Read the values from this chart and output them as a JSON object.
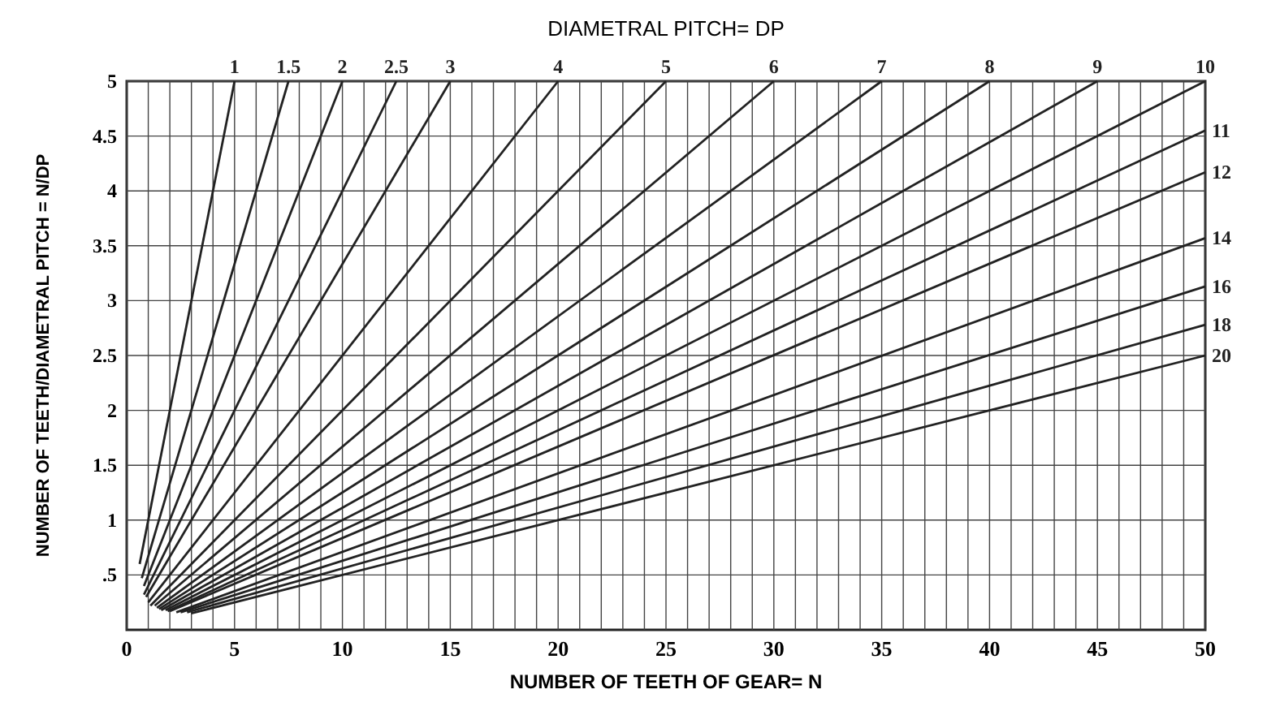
{
  "chart_data": {
    "type": "line",
    "title": "DIAMETRAL PITCH= DP",
    "xlabel": "NUMBER OF TEETH OF GEAR= N",
    "ylabel": "NUMBER OF TEETH/DIAMETRAL PITCH = N/DP",
    "xlim": [
      0,
      50
    ],
    "ylim": [
      0,
      5
    ],
    "xticks": [
      0,
      {
        "value": 1,
        "label": null
      },
      {
        "value": 2,
        "label": null
      },
      {
        "value": 3,
        "label": null
      },
      {
        "value": 4,
        "label": null
      },
      5,
      {
        "value": 6,
        "label": null
      },
      {
        "value": 7,
        "label": null
      },
      {
        "value": 8,
        "label": null
      },
      {
        "value": 9,
        "label": null
      },
      10,
      {
        "value": 11,
        "label": null
      },
      {
        "value": 12,
        "label": null
      },
      {
        "value": 13,
        "label": null
      },
      {
        "value": 14,
        "label": null
      },
      15,
      {
        "value": 16,
        "label": null
      },
      {
        "value": 17,
        "label": null
      },
      {
        "value": 18,
        "label": null
      },
      {
        "value": 19,
        "label": null
      },
      20,
      {
        "value": 21,
        "label": null
      },
      {
        "value": 22,
        "label": null
      },
      {
        "value": 23,
        "label": null
      },
      {
        "value": 24,
        "label": null
      },
      25,
      {
        "value": 26,
        "label": null
      },
      {
        "value": 27,
        "label": null
      },
      {
        "value": 28,
        "label": null
      },
      {
        "value": 29,
        "label": null
      },
      30,
      {
        "value": 31,
        "label": null
      },
      {
        "value": 32,
        "label": null
      },
      {
        "value": 33,
        "label": null
      },
      {
        "value": 34,
        "label": null
      },
      35,
      {
        "value": 36,
        "label": null
      },
      {
        "value": 37,
        "label": null
      },
      {
        "value": 38,
        "label": null
      },
      {
        "value": 39,
        "label": null
      },
      40,
      {
        "value": 41,
        "label": null
      },
      {
        "value": 42,
        "label": null
      },
      {
        "value": 43,
        "label": null
      },
      {
        "value": 44,
        "label": null
      },
      45,
      {
        "value": 46,
        "label": null
      },
      {
        "value": 47,
        "label": null
      },
      {
        "value": 48,
        "label": null
      },
      {
        "value": 49,
        "label": null
      },
      50
    ],
    "yticks": [
      {
        "value": 0.5,
        "label": ".5"
      },
      1,
      1.5,
      2,
      2.5,
      3,
      3.5,
      4,
      4.5,
      5
    ],
    "grid": true,
    "marker": "none",
    "line_style": "solid",
    "series": [
      {
        "name": "1",
        "color": "#222222",
        "x": [
          0.6,
          5
        ],
        "values": [
          0.6,
          5
        ]
      },
      {
        "name": "1.5",
        "color": "#222222",
        "x": [
          0.7,
          7.5
        ],
        "values": [
          0.47,
          5
        ]
      },
      {
        "name": "2",
        "color": "#222222",
        "x": [
          0.8,
          10
        ],
        "values": [
          0.4,
          5
        ]
      },
      {
        "name": "2.5",
        "color": "#222222",
        "x": [
          0.8,
          12.5
        ],
        "values": [
          0.32,
          5
        ]
      },
      {
        "name": "3",
        "color": "#222222",
        "x": [
          0.9,
          15
        ],
        "values": [
          0.3,
          5
        ]
      },
      {
        "name": "4",
        "color": "#222222",
        "x": [
          1,
          20
        ],
        "values": [
          0.25,
          5
        ]
      },
      {
        "name": "5",
        "color": "#222222",
        "x": [
          1.1,
          25
        ],
        "values": [
          0.22,
          5
        ]
      },
      {
        "name": "6",
        "color": "#222222",
        "x": [
          1.3,
          30
        ],
        "values": [
          0.22,
          5
        ]
      },
      {
        "name": "7",
        "color": "#222222",
        "x": [
          1.4,
          35
        ],
        "values": [
          0.2,
          5
        ]
      },
      {
        "name": "8",
        "color": "#222222",
        "x": [
          1.5,
          40
        ],
        "values": [
          0.19,
          5
        ]
      },
      {
        "name": "9",
        "color": "#222222",
        "x": [
          1.6,
          45
        ],
        "values": [
          0.18,
          5
        ]
      },
      {
        "name": "10",
        "color": "#222222",
        "x": [
          1.8,
          50
        ],
        "values": [
          0.18,
          5
        ]
      },
      {
        "name": "11",
        "color": "#222222",
        "x": [
          1.9,
          50
        ],
        "values": [
          0.17,
          4.55
        ]
      },
      {
        "name": "12",
        "color": "#222222",
        "x": [
          2,
          50
        ],
        "values": [
          0.17,
          4.17
        ]
      },
      {
        "name": "14",
        "color": "#222222",
        "x": [
          2.3,
          50
        ],
        "values": [
          0.16,
          3.57
        ]
      },
      {
        "name": "16",
        "color": "#222222",
        "x": [
          2.5,
          50
        ],
        "values": [
          0.16,
          3.13
        ]
      },
      {
        "name": "18",
        "color": "#222222",
        "x": [
          2.8,
          50
        ],
        "values": [
          0.16,
          2.78
        ]
      },
      {
        "name": "20",
        "color": "#222222",
        "x": [
          3,
          50
        ],
        "values": [
          0.15,
          2.5
        ]
      }
    ]
  }
}
